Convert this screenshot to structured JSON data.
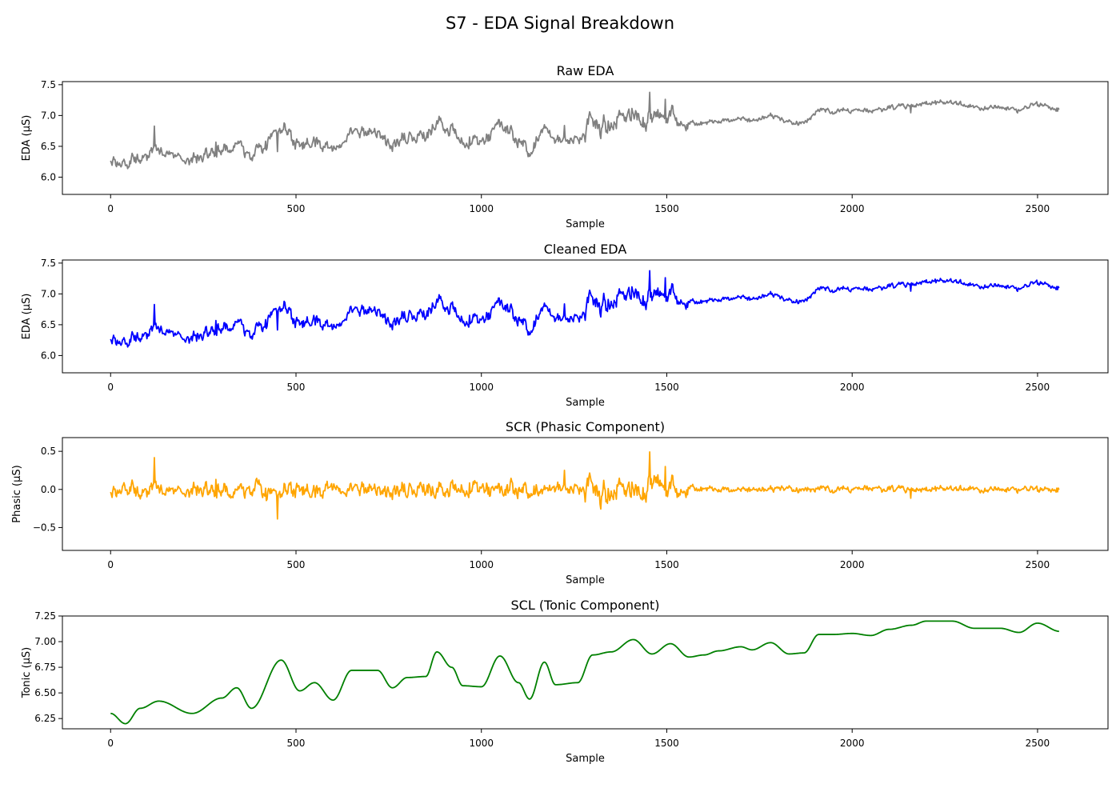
{
  "figure": {
    "title": "S7 - EDA Signal Breakdown"
  },
  "chart_data": [
    {
      "type": "line",
      "title": "Raw EDA",
      "xlabel": "Sample",
      "ylabel": "EDA (µS)",
      "xlim": [
        -130,
        2690
      ],
      "ylim": [
        5.72,
        7.55
      ],
      "xticks": [
        0,
        500,
        1000,
        1500,
        2000,
        2500
      ],
      "yticks": [
        6.0,
        6.5,
        7.0,
        7.5
      ],
      "ytick_labels": [
        "6.0",
        "6.5",
        "7.0",
        "7.5"
      ],
      "grid": false,
      "series": [
        {
          "color": "#808080",
          "n_samples": 2560,
          "trend": [
            [
              0,
              6.3
            ],
            [
              40,
              6.2
            ],
            [
              80,
              6.35
            ],
            [
              130,
              6.42
            ],
            [
              220,
              6.3
            ],
            [
              300,
              6.45
            ],
            [
              340,
              6.55
            ],
            [
              380,
              6.35
            ],
            [
              460,
              6.82
            ],
            [
              510,
              6.52
            ],
            [
              550,
              6.6
            ],
            [
              600,
              6.43
            ],
            [
              650,
              6.72
            ],
            [
              720,
              6.72
            ],
            [
              760,
              6.55
            ],
            [
              800,
              6.65
            ],
            [
              850,
              6.66
            ],
            [
              880,
              6.9
            ],
            [
              920,
              6.75
            ],
            [
              950,
              6.57
            ],
            [
              1000,
              6.56
            ],
            [
              1050,
              6.86
            ],
            [
              1100,
              6.6
            ],
            [
              1130,
              6.44
            ],
            [
              1170,
              6.8
            ],
            [
              1200,
              6.58
            ],
            [
              1260,
              6.6
            ],
            [
              1300,
              6.87
            ],
            [
              1350,
              6.9
            ],
            [
              1410,
              7.02
            ],
            [
              1460,
              6.88
            ],
            [
              1510,
              6.98
            ],
            [
              1560,
              6.85
            ],
            [
              1600,
              6.87
            ],
            [
              1640,
              6.91
            ],
            [
              1700,
              6.95
            ],
            [
              1730,
              6.92
            ],
            [
              1780,
              6.99
            ],
            [
              1830,
              6.88
            ],
            [
              1870,
              6.89
            ],
            [
              1910,
              7.07
            ],
            [
              1950,
              7.07
            ],
            [
              2000,
              7.08
            ],
            [
              2050,
              7.06
            ],
            [
              2100,
              7.12
            ],
            [
              2160,
              7.16
            ],
            [
              2200,
              7.2
            ],
            [
              2270,
              7.2
            ],
            [
              2330,
              7.13
            ],
            [
              2400,
              7.13
            ],
            [
              2450,
              7.09
            ],
            [
              2500,
              7.18
            ],
            [
              2560,
              7.1
            ]
          ],
          "noise": [
            [
              0,
              0.12
            ],
            [
              1260,
              0.12
            ],
            [
              1300,
              0.2
            ],
            [
              1560,
              0.16
            ],
            [
              1580,
              0.05
            ],
            [
              2560,
              0.05
            ]
          ],
          "seed": 7
        }
      ]
    },
    {
      "type": "line",
      "title": "Cleaned EDA",
      "xlabel": "Sample",
      "ylabel": "EDA (µS)",
      "xlim": [
        -130,
        2690
      ],
      "ylim": [
        5.72,
        7.55
      ],
      "xticks": [
        0,
        500,
        1000,
        1500,
        2000,
        2500
      ],
      "yticks": [
        6.0,
        6.5,
        7.0,
        7.5
      ],
      "ytick_labels": [
        "6.0",
        "6.5",
        "7.0",
        "7.5"
      ],
      "grid": false,
      "series": [
        {
          "color": "#0000ff",
          "n_samples": 2560,
          "trend": [
            [
              0,
              6.3
            ],
            [
              40,
              6.2
            ],
            [
              80,
              6.35
            ],
            [
              130,
              6.42
            ],
            [
              220,
              6.3
            ],
            [
              300,
              6.45
            ],
            [
              340,
              6.55
            ],
            [
              380,
              6.35
            ],
            [
              460,
              6.82
            ],
            [
              510,
              6.52
            ],
            [
              550,
              6.6
            ],
            [
              600,
              6.43
            ],
            [
              650,
              6.72
            ],
            [
              720,
              6.72
            ],
            [
              760,
              6.55
            ],
            [
              800,
              6.65
            ],
            [
              850,
              6.66
            ],
            [
              880,
              6.9
            ],
            [
              920,
              6.75
            ],
            [
              950,
              6.57
            ],
            [
              1000,
              6.56
            ],
            [
              1050,
              6.86
            ],
            [
              1100,
              6.6
            ],
            [
              1130,
              6.44
            ],
            [
              1170,
              6.8
            ],
            [
              1200,
              6.58
            ],
            [
              1260,
              6.6
            ],
            [
              1300,
              6.87
            ],
            [
              1350,
              6.9
            ],
            [
              1410,
              7.02
            ],
            [
              1460,
              6.88
            ],
            [
              1510,
              6.98
            ],
            [
              1560,
              6.85
            ],
            [
              1600,
              6.87
            ],
            [
              1640,
              6.91
            ],
            [
              1700,
              6.95
            ],
            [
              1730,
              6.92
            ],
            [
              1780,
              6.99
            ],
            [
              1830,
              6.88
            ],
            [
              1870,
              6.89
            ],
            [
              1910,
              7.07
            ],
            [
              1950,
              7.07
            ],
            [
              2000,
              7.08
            ],
            [
              2050,
              7.06
            ],
            [
              2100,
              7.12
            ],
            [
              2160,
              7.16
            ],
            [
              2200,
              7.2
            ],
            [
              2270,
              7.2
            ],
            [
              2330,
              7.13
            ],
            [
              2400,
              7.13
            ],
            [
              2450,
              7.09
            ],
            [
              2500,
              7.18
            ],
            [
              2560,
              7.1
            ]
          ],
          "noise": [
            [
              0,
              0.12
            ],
            [
              1260,
              0.12
            ],
            [
              1300,
              0.2
            ],
            [
              1560,
              0.16
            ],
            [
              1580,
              0.05
            ],
            [
              2560,
              0.05
            ]
          ],
          "seed": 7
        }
      ]
    },
    {
      "type": "line",
      "title": "SCR (Phasic Component)",
      "xlabel": "Sample",
      "ylabel": "Phasic (µS)",
      "xlim": [
        -130,
        2690
      ],
      "ylim": [
        -0.8,
        0.68
      ],
      "xticks": [
        0,
        500,
        1000,
        1500,
        2000,
        2500
      ],
      "yticks": [
        -0.5,
        0.0,
        0.5
      ],
      "ytick_labels": [
        "−0.5",
        "0.0",
        "0.5"
      ],
      "grid": false,
      "series": [
        {
          "color": "#ffa500",
          "n_samples": 2560,
          "trend": [
            [
              0,
              0.0
            ],
            [
              2560,
              0.0
            ]
          ],
          "noise": [
            [
              0,
              0.12
            ],
            [
              1260,
              0.12
            ],
            [
              1300,
              0.2
            ],
            [
              1560,
              0.16
            ],
            [
              1580,
              0.05
            ],
            [
              2560,
              0.05
            ]
          ],
          "seed": 7
        }
      ]
    },
    {
      "type": "line",
      "title": "SCL (Tonic Component)",
      "xlabel": "Sample",
      "ylabel": "Tonic (µS)",
      "xlim": [
        -130,
        2690
      ],
      "ylim": [
        6.15,
        7.25
      ],
      "xticks": [
        0,
        500,
        1000,
        1500,
        2000,
        2500
      ],
      "yticks": [
        6.25,
        6.5,
        6.75,
        7.0,
        7.25
      ],
      "ytick_labels": [
        "6.25",
        "6.50",
        "6.75",
        "7.00",
        "7.25"
      ],
      "grid": false,
      "series": [
        {
          "color": "#008000",
          "n_samples": 2560,
          "trend": [
            [
              0,
              6.3
            ],
            [
              40,
              6.2
            ],
            [
              80,
              6.35
            ],
            [
              130,
              6.42
            ],
            [
              220,
              6.3
            ],
            [
              300,
              6.45
            ],
            [
              340,
              6.55
            ],
            [
              380,
              6.35
            ],
            [
              460,
              6.82
            ],
            [
              510,
              6.52
            ],
            [
              550,
              6.6
            ],
            [
              600,
              6.43
            ],
            [
              650,
              6.72
            ],
            [
              720,
              6.72
            ],
            [
              760,
              6.55
            ],
            [
              800,
              6.65
            ],
            [
              850,
              6.66
            ],
            [
              880,
              6.9
            ],
            [
              920,
              6.75
            ],
            [
              950,
              6.57
            ],
            [
              1000,
              6.56
            ],
            [
              1050,
              6.86
            ],
            [
              1100,
              6.6
            ],
            [
              1130,
              6.44
            ],
            [
              1170,
              6.8
            ],
            [
              1200,
              6.58
            ],
            [
              1260,
              6.6
            ],
            [
              1300,
              6.87
            ],
            [
              1350,
              6.9
            ],
            [
              1410,
              7.02
            ],
            [
              1460,
              6.88
            ],
            [
              1510,
              6.98
            ],
            [
              1560,
              6.85
            ],
            [
              1600,
              6.87
            ],
            [
              1640,
              6.91
            ],
            [
              1700,
              6.95
            ],
            [
              1730,
              6.92
            ],
            [
              1780,
              6.99
            ],
            [
              1830,
              6.88
            ],
            [
              1870,
              6.89
            ],
            [
              1910,
              7.07
            ],
            [
              1950,
              7.07
            ],
            [
              2000,
              7.08
            ],
            [
              2050,
              7.06
            ],
            [
              2100,
              7.12
            ],
            [
              2160,
              7.16
            ],
            [
              2200,
              7.2
            ],
            [
              2270,
              7.2
            ],
            [
              2330,
              7.13
            ],
            [
              2400,
              7.13
            ],
            [
              2450,
              7.09
            ],
            [
              2500,
              7.18
            ],
            [
              2560,
              7.1
            ]
          ],
          "noise": [
            [
              0,
              0
            ],
            [
              2560,
              0
            ]
          ],
          "seed": 7
        }
      ]
    }
  ]
}
